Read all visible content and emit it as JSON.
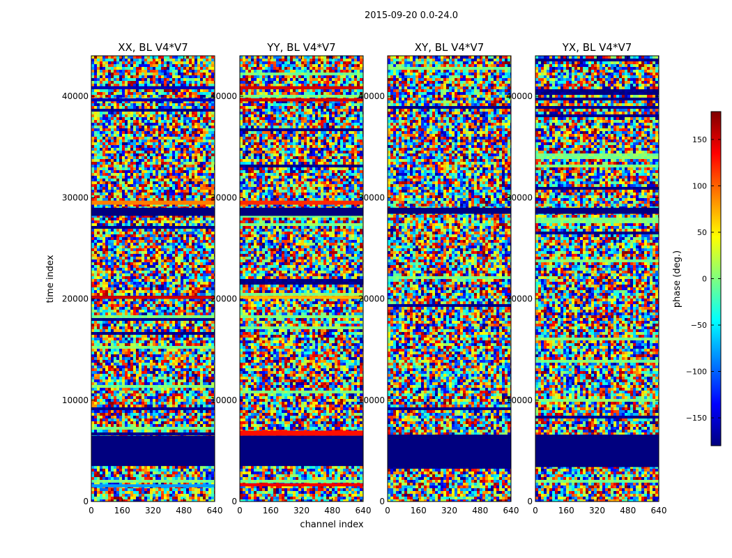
{
  "figure": {
    "suptitle": "2015-09-20 0.0-24.0",
    "ylabel": "time index",
    "xlabel": "channel index"
  },
  "colorbar": {
    "label": "phase (deg.)",
    "range": [
      -180,
      180
    ],
    "ticks": [
      -150,
      -100,
      -50,
      0,
      50,
      100,
      150
    ],
    "colors": [
      "#00007f",
      "#0000ff",
      "#007fff",
      "#00ffff",
      "#7fff7f",
      "#ffff00",
      "#ff7f00",
      "#ff0000",
      "#7f0000"
    ]
  },
  "chart_data": {
    "type": "heatmap",
    "xlim": [
      0,
      640
    ],
    "ylim": [
      0,
      44000
    ],
    "xticks": [
      0,
      160,
      320,
      480,
      640
    ],
    "yticks": [
      0,
      10000,
      20000,
      30000,
      40000
    ],
    "panels": [
      {
        "title": "XX, BL V4*V7",
        "blocks": [
          {
            "t0": 3500,
            "t1": 6500,
            "phase": -180
          },
          {
            "t0": 28200,
            "t1": 29000,
            "phase": -180
          },
          {
            "t0": 29300,
            "t1": 29700,
            "phase": 90
          },
          {
            "t0": 20000,
            "t1": 20300,
            "phase": 150
          },
          {
            "t0": 40700,
            "t1": 41000,
            "phase": -160
          },
          {
            "t0": 39500,
            "t1": 39800,
            "phase": -160
          },
          {
            "t0": 1400,
            "t1": 1700,
            "phase": -80
          }
        ]
      },
      {
        "title": "YY, BL V4*V7",
        "blocks": [
          {
            "t0": 3500,
            "t1": 6500,
            "phase": -180
          },
          {
            "t0": 6500,
            "t1": 7000,
            "phase": 130
          },
          {
            "t0": 28200,
            "t1": 29000,
            "phase": -180
          },
          {
            "t0": 29300,
            "t1": 29700,
            "phase": 120
          },
          {
            "t0": 20000,
            "t1": 20300,
            "phase": 70
          },
          {
            "t0": 40700,
            "t1": 41000,
            "phase": 150
          },
          {
            "t0": 39500,
            "t1": 39800,
            "phase": 150
          },
          {
            "t0": 1500,
            "t1": 1800,
            "phase": 140
          }
        ]
      },
      {
        "title": "XY, BL V4*V7",
        "blocks": [
          {
            "t0": 3400,
            "t1": 6600,
            "phase": -180
          },
          {
            "t0": 28400,
            "t1": 29000,
            "phase": -180
          }
        ]
      },
      {
        "title": "YX, BL V4*V7",
        "blocks": [
          {
            "t0": 3400,
            "t1": 6600,
            "phase": -180
          },
          {
            "t0": 28400,
            "t1": 29000,
            "phase": -180
          }
        ]
      }
    ]
  }
}
